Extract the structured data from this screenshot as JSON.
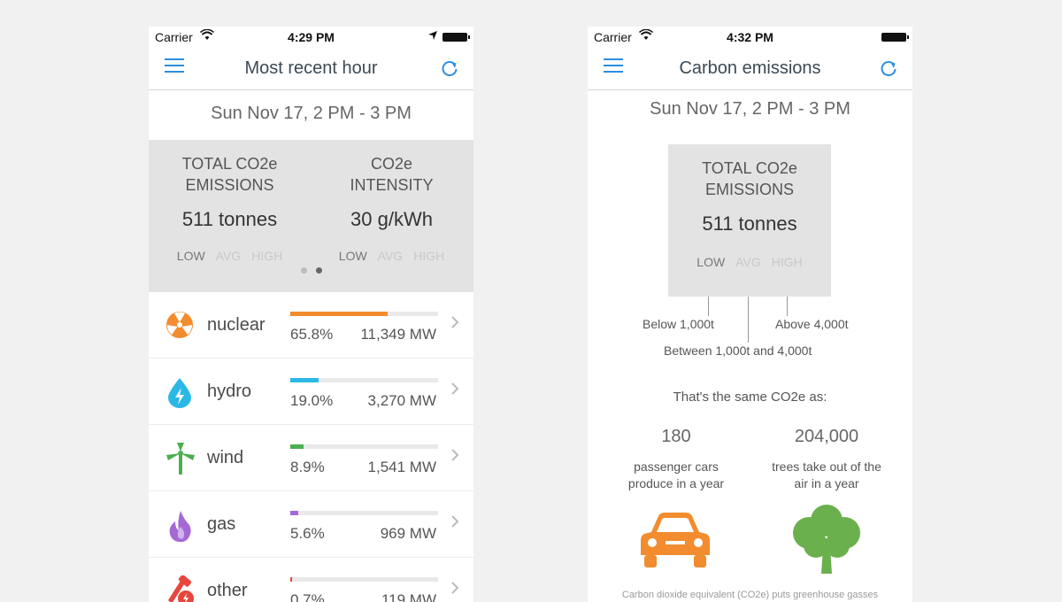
{
  "left": {
    "status": {
      "carrier": "Carrier",
      "time": "4:29 PM"
    },
    "nav": {
      "title": "Most recent hour"
    },
    "date": "Sun Nov 17, 2 PM - 3 PM",
    "summary": {
      "total": {
        "title1": "TOTAL CO2e",
        "title2": "EMISSIONS",
        "value": "511 tonnes"
      },
      "intensity": {
        "title1": "CO2e",
        "title2": "INTENSITY",
        "value": "30 g/kWh"
      },
      "levels": {
        "low": "LOW",
        "avg": "AVG",
        "high": "HIGH"
      },
      "active_page": 2,
      "pages": 2
    },
    "sources": [
      {
        "name": "nuclear",
        "pct": "65.8%",
        "mw": "11,349 MW",
        "fraction": 0.658,
        "color": "#f28c2e",
        "icon": "nuclear-icon"
      },
      {
        "name": "hydro",
        "pct": "19.0%",
        "mw": "3,270 MW",
        "fraction": 0.19,
        "color": "#2bb8e6",
        "icon": "water-drop-icon"
      },
      {
        "name": "wind",
        "pct": "8.9%",
        "mw": "1,541 MW",
        "fraction": 0.089,
        "color": "#4caf50",
        "icon": "wind-turbine-icon"
      },
      {
        "name": "gas",
        "pct": "5.6%",
        "mw": "969 MW",
        "fraction": 0.056,
        "color": "#a569d6",
        "icon": "flame-icon"
      },
      {
        "name": "other",
        "pct": "0.7%",
        "mw": "119 MW",
        "fraction": 0.007,
        "color": "#e8453c",
        "icon": "other-power-icon"
      }
    ]
  },
  "right": {
    "status": {
      "carrier": "Carrier",
      "time": "4:32 PM"
    },
    "nav": {
      "title": "Carbon emissions"
    },
    "date": "Sun Nov 17, 2 PM - 3 PM",
    "box": {
      "title1": "TOTAL CO2e",
      "title2": "EMISSIONS",
      "value": "511 tonnes",
      "low": "LOW",
      "avg": "AVG",
      "high": "HIGH"
    },
    "thresholds": {
      "below": "Below 1,000t",
      "between": "Between 1,000t and 4,000t",
      "above": "Above 4,000t"
    },
    "same_as": "That's the same CO2e as:",
    "equivalents": [
      {
        "number": "180",
        "line1": "passenger cars",
        "line2": "produce in a year",
        "icon": "car-icon",
        "color": "#f28c2e"
      },
      {
        "number": "204,000",
        "line1": "trees take out of the",
        "line2": "air in a year",
        "icon": "tree-icon",
        "color": "#6ab04c"
      }
    ],
    "footnote": "Carbon dioxide equivalent (CO2e) puts greenhouse gasses"
  }
}
